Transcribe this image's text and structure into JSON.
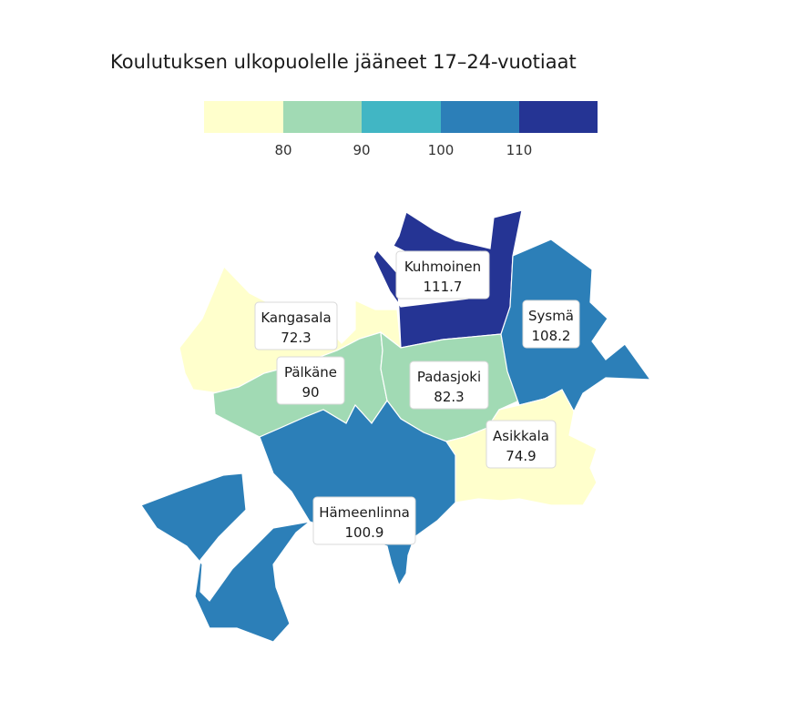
{
  "title": "Koulutuksen ulkopuolelle jääneet 17–24-vuotiaat",
  "legend": {
    "colors": [
      "#ffffcc",
      "#a1dab4",
      "#41b6c4",
      "#2c7fb8",
      "#253494"
    ],
    "ticks": [
      "80",
      "90",
      "100",
      "110"
    ],
    "thresholds": [
      80,
      90,
      100,
      110
    ]
  },
  "regions": [
    {
      "name": "Kuhmoinen",
      "value": "111.7",
      "color": "#253494"
    },
    {
      "name": "Sysmä",
      "value": "108.2",
      "color": "#2c7fb8"
    },
    {
      "name": "Kangasala",
      "value": "72.3",
      "color": "#ffffcc"
    },
    {
      "name": "Pälkäne",
      "value": "90",
      "color": "#a1dab4"
    },
    {
      "name": "Padasjoki",
      "value": "82.3",
      "color": "#a1dab4"
    },
    {
      "name": "Asikkala",
      "value": "74.9",
      "color": "#ffffcc"
    },
    {
      "name": "Hämeenlinna",
      "value": "100.9",
      "color": "#2c7fb8"
    }
  ]
}
